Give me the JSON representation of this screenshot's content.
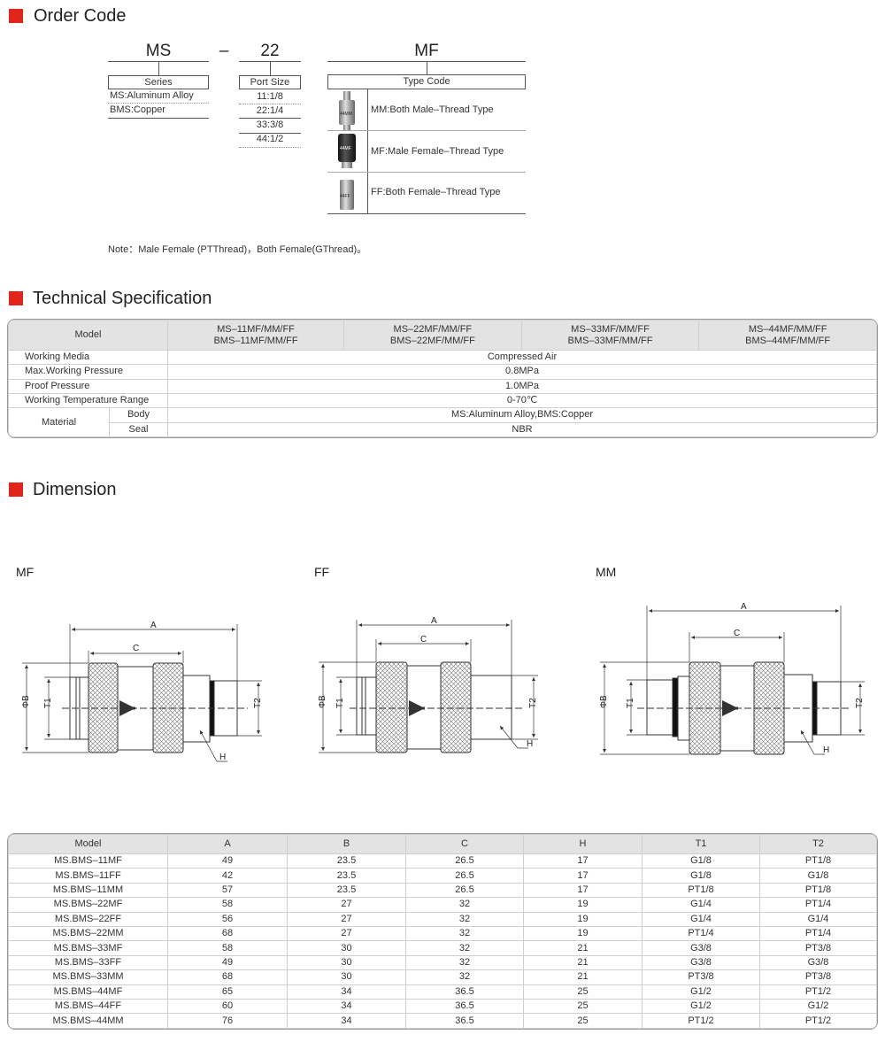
{
  "colors": {
    "accent": "#e0261b",
    "header_bg": "#e3e3e3"
  },
  "order_code": {
    "title": "Order Code",
    "series": {
      "code": "MS",
      "label": "Series",
      "items": [
        "MS:Aluminum Alloy",
        "BMS:Copper"
      ]
    },
    "separator": "–",
    "port": {
      "code": "22",
      "label": "Port Size",
      "items": [
        "11:1/8",
        "22:1/4",
        "33:3/8",
        "44:1/2"
      ]
    },
    "type": {
      "code": "MF",
      "label": "Type Code",
      "items": [
        {
          "label": "MM:Both Male–Thread Type",
          "image_text": "44MM"
        },
        {
          "label": "MF:Male Female–Thread Type",
          "image_text": "44MF"
        },
        {
          "label": "FF:Both Female–Thread Type",
          "image_text": "44FF"
        }
      ]
    },
    "note": "Note：Male Female (PTThread)，Both Female(GThread)。"
  },
  "tech_spec": {
    "title": "Technical Specification",
    "model_label": "Model",
    "models": [
      [
        "MS–11MF/MM/FF",
        "BMS–11MF/MM/FF"
      ],
      [
        "MS–22MF/MM/FF",
        "BMS–22MF/MM/FF"
      ],
      [
        "MS–33MF/MM/FF",
        "BMS–33MF/MM/FF"
      ],
      [
        "MS–44MF/MM/FF",
        "BMS–44MF/MM/FF"
      ]
    ],
    "rows": [
      {
        "label": "Working Media",
        "value": "Compressed Air"
      },
      {
        "label": "Max.Working Pressure",
        "value": "0.8MPa"
      },
      {
        "label": "Proof Pressure",
        "value": "1.0MPa"
      },
      {
        "label": "Working Temperature Range",
        "value": "0-70℃"
      }
    ],
    "material": {
      "label": "Material",
      "body_label": "Body",
      "body_value": "MS:Aluminum Alloy,BMS:Copper",
      "seal_label": "Seal",
      "seal_value": "NBR"
    }
  },
  "dimension": {
    "title": "Dimension",
    "drawings": [
      {
        "label": "MF",
        "dims": {
          "a": "A",
          "c": "C",
          "b": "ΦB",
          "t1": "T1",
          "t2": "T2",
          "h": "H"
        }
      },
      {
        "label": "FF",
        "dims": {
          "a": "A",
          "c": "C",
          "b": "ΦB",
          "t1": "T1",
          "t2": "T2",
          "h": "H"
        }
      },
      {
        "label": "MM",
        "dims": {
          "a": "A",
          "c": "C",
          "b": "ΦB",
          "t1": "T1",
          "t2": "T2",
          "h": "H"
        }
      }
    ],
    "table": {
      "headers": [
        "Model",
        "A",
        "B",
        "C",
        "H",
        "T1",
        "T2"
      ],
      "rows": [
        [
          "MS.BMS–11MF",
          "49",
          "23.5",
          "26.5",
          "17",
          "G1/8",
          "PT1/8"
        ],
        [
          "MS.BMS–11FF",
          "42",
          "23.5",
          "26.5",
          "17",
          "G1/8",
          "G1/8"
        ],
        [
          "MS.BMS–11MM",
          "57",
          "23.5",
          "26.5",
          "17",
          "PT1/8",
          "PT1/8"
        ],
        [
          "MS.BMS–22MF",
          "58",
          "27",
          "32",
          "19",
          "G1/4",
          "PT1/4"
        ],
        [
          "MS.BMS–22FF",
          "56",
          "27",
          "32",
          "19",
          "G1/4",
          "G1/4"
        ],
        [
          "MS.BMS–22MM",
          "68",
          "27",
          "32",
          "19",
          "PT1/4",
          "PT1/4"
        ],
        [
          "MS.BMS–33MF",
          "58",
          "30",
          "32",
          "21",
          "G3/8",
          "PT3/8"
        ],
        [
          "MS.BMS–33FF",
          "49",
          "30",
          "32",
          "21",
          "G3/8",
          "G3/8"
        ],
        [
          "MS.BMS–33MM",
          "68",
          "30",
          "32",
          "21",
          "PT3/8",
          "PT3/8"
        ],
        [
          "MS.BMS–44MF",
          "65",
          "34",
          "36.5",
          "25",
          "G1/2",
          "PT1/2"
        ],
        [
          "MS.BMS–44FF",
          "60",
          "34",
          "36.5",
          "25",
          "G1/2",
          "G1/2"
        ],
        [
          "MS.BMS–44MM",
          "76",
          "34",
          "36.5",
          "25",
          "PT1/2",
          "PT1/2"
        ]
      ]
    }
  }
}
